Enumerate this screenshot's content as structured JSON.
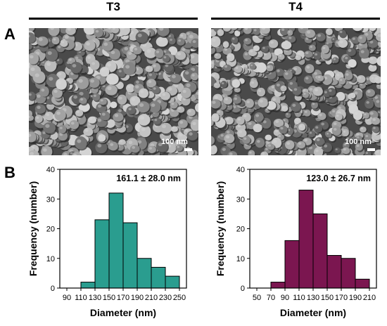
{
  "figure": {
    "panel_a_label": "A",
    "panel_b_label": "B",
    "columns": [
      {
        "title": "T3",
        "scale_label": "100 nm"
      },
      {
        "title": "T4",
        "scale_label": "100 nm"
      }
    ]
  },
  "chart_data": [
    {
      "type": "bar",
      "annotation": "161.1 ± 28.0 nm",
      "xlabel": "Diameter (nm)",
      "ylabel": "Frequency (number)",
      "x_ticks": [
        "90",
        "110",
        "130",
        "150",
        "170",
        "190",
        "210",
        "230",
        "250"
      ],
      "y_ticks": [
        "0",
        "10",
        "20",
        "30",
        "40"
      ],
      "xlim": [
        80,
        260
      ],
      "ylim": [
        0,
        40
      ],
      "bin_edges": [
        110,
        130,
        150,
        170,
        190,
        210,
        230,
        250
      ],
      "values": [
        2,
        23,
        32,
        22,
        10,
        7,
        4
      ],
      "color": "#2a9d8f"
    },
    {
      "type": "bar",
      "annotation": "123.0 ± 26.7 nm",
      "xlabel": "Diameter (nm)",
      "ylabel": "Frequency (number)",
      "x_ticks": [
        "50",
        "70",
        "90",
        "110",
        "130",
        "150",
        "170",
        "190",
        "210"
      ],
      "y_ticks": [
        "0",
        "10",
        "20",
        "30",
        "40"
      ],
      "xlim": [
        40,
        220
      ],
      "ylim": [
        0,
        40
      ],
      "bin_edges": [
        70,
        90,
        110,
        130,
        150,
        170,
        190,
        210
      ],
      "values": [
        2,
        16,
        33,
        25,
        11,
        10,
        3
      ],
      "color": "#7b1650"
    }
  ]
}
